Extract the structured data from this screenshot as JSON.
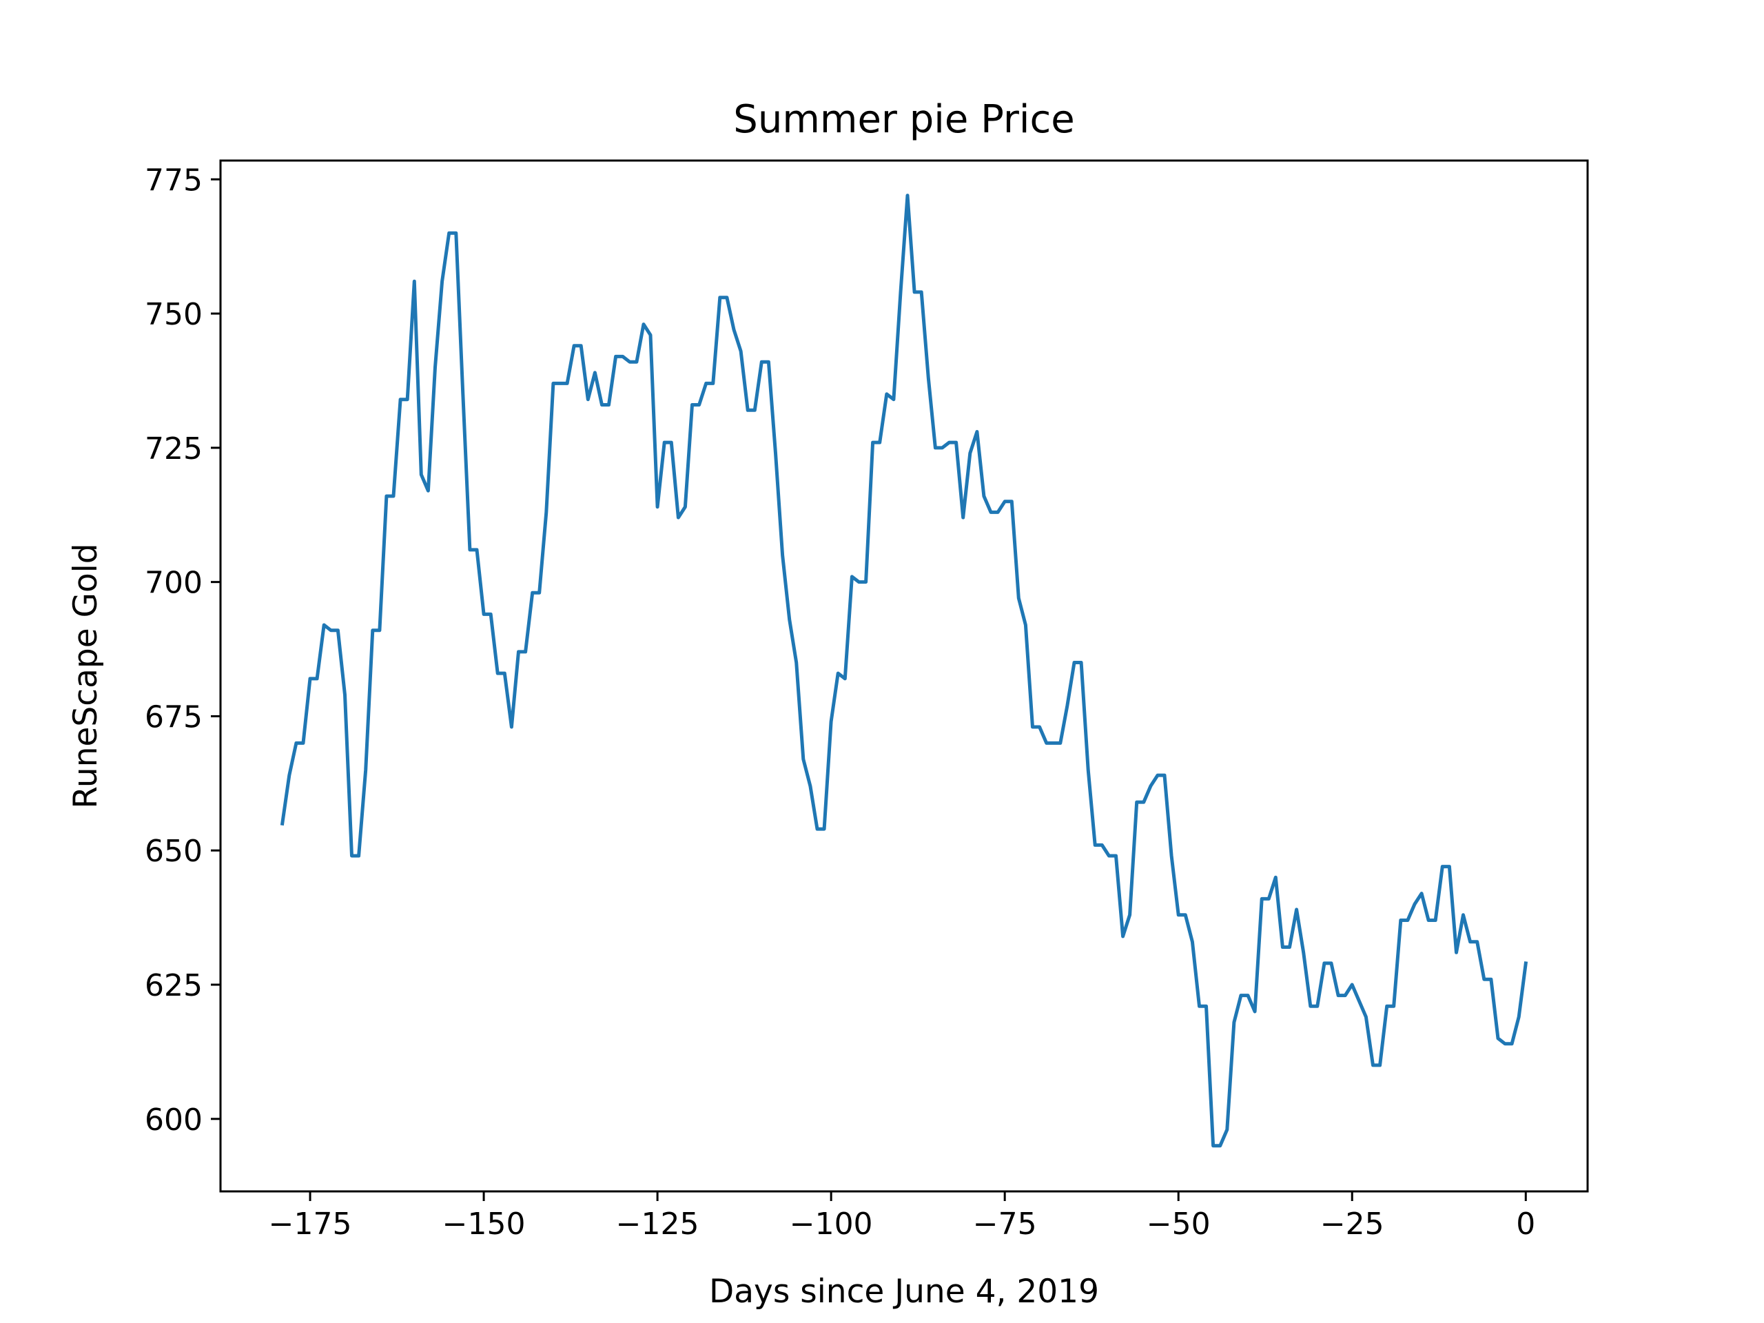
{
  "chart_data": {
    "type": "line",
    "title": "Summer pie Price",
    "xlabel": "Days since June 4, 2019",
    "ylabel": "RuneScape Gold",
    "xlim": [
      -187.9,
      8.9
    ],
    "ylim": [
      586.5,
      778.5
    ],
    "xticks": [
      -175,
      -150,
      -125,
      -100,
      -75,
      -50,
      -25,
      0
    ],
    "xtick_labels": [
      "−175",
      "−150",
      "−125",
      "−100",
      "−75",
      "−50",
      "−25",
      "0"
    ],
    "yticks": [
      600,
      625,
      650,
      675,
      700,
      725,
      750,
      775
    ],
    "ytick_labels": [
      "600",
      "625",
      "650",
      "675",
      "700",
      "725",
      "750",
      "775"
    ],
    "grid": false,
    "series": [
      {
        "color": "#1f77b4",
        "x": [
          -179,
          -178,
          -177,
          -176,
          -175,
          -174,
          -173,
          -172,
          -171,
          -170,
          -169,
          -168,
          -167,
          -166,
          -165,
          -164,
          -163,
          -162,
          -161,
          -160,
          -159,
          -158,
          -157,
          -156,
          -155,
          -154,
          -153,
          -152,
          -151,
          -150,
          -149,
          -148,
          -147,
          -146,
          -145,
          -144,
          -143,
          -142,
          -141,
          -140,
          -139,
          -138,
          -137,
          -136,
          -135,
          -134,
          -133,
          -132,
          -131,
          -130,
          -129,
          -128,
          -127,
          -126,
          -125,
          -124,
          -123,
          -122,
          -121,
          -120,
          -119,
          -118,
          -117,
          -116,
          -115,
          -114,
          -113,
          -112,
          -111,
          -110,
          -109,
          -108,
          -107,
          -106,
          -105,
          -104,
          -103,
          -102,
          -101,
          -100,
          -99,
          -98,
          -97,
          -96,
          -95,
          -94,
          -93,
          -92,
          -91,
          -90,
          -89,
          -88,
          -87,
          -86,
          -85,
          -84,
          -83,
          -82,
          -81,
          -80,
          -79,
          -78,
          -77,
          -76,
          -75,
          -74,
          -73,
          -72,
          -71,
          -70,
          -69,
          -68,
          -67,
          -66,
          -65,
          -64,
          -63,
          -62,
          -61,
          -60,
          -59,
          -58,
          -57,
          -56,
          -55,
          -54,
          -53,
          -52,
          -51,
          -50,
          -49,
          -48,
          -47,
          -46,
          -45,
          -44,
          -43,
          -42,
          -41,
          -40,
          -39,
          -38,
          -37,
          -36,
          -35,
          -34,
          -33,
          -32,
          -31,
          -30,
          -29,
          -28,
          -27,
          -26,
          -25,
          -24,
          -23,
          -22,
          -21,
          -20,
          -19,
          -18,
          -17,
          -16,
          -15,
          -14,
          -13,
          -12,
          -11,
          -10,
          -9,
          -8,
          -7,
          -6,
          -5,
          -4,
          -3,
          -2,
          -1,
          0
        ],
        "y": [
          655,
          664,
          670,
          670,
          682,
          682,
          692,
          691,
          691,
          679,
          649,
          649,
          665,
          691,
          691,
          716,
          716,
          734,
          734,
          756,
          720,
          717,
          740,
          756,
          765,
          765,
          735,
          706,
          706,
          694,
          694,
          683,
          683,
          673,
          687,
          687,
          698,
          698,
          713,
          737,
          737,
          737,
          744,
          744,
          734,
          739,
          733,
          733,
          742,
          742,
          741,
          741,
          748,
          746,
          714,
          726,
          726,
          712,
          714,
          733,
          733,
          737,
          737,
          753,
          753,
          747,
          743,
          732,
          732,
          741,
          741,
          724,
          705,
          693,
          685,
          667,
          662,
          654,
          654,
          674,
          683,
          682,
          701,
          700,
          700,
          726,
          726,
          735,
          734,
          754,
          772,
          754,
          754,
          738,
          725,
          725,
          726,
          726,
          712,
          724,
          728,
          716,
          713,
          713,
          715,
          715,
          697,
          692,
          673,
          673,
          670,
          670,
          670,
          677,
          685,
          685,
          665,
          651,
          651,
          649,
          649,
          634,
          638,
          659,
          659,
          662,
          664,
          664,
          649,
          638,
          638,
          633,
          621,
          621,
          595,
          595,
          598,
          618,
          623,
          623,
          620,
          641,
          641,
          645,
          632,
          632,
          639,
          631,
          621,
          621,
          629,
          629,
          623,
          623,
          625,
          622,
          619,
          610,
          610,
          621,
          621,
          637,
          637,
          640,
          642,
          637,
          637,
          647,
          647,
          631,
          638,
          633,
          633,
          626,
          626,
          615,
          614,
          614,
          619,
          629
        ]
      }
    ]
  }
}
